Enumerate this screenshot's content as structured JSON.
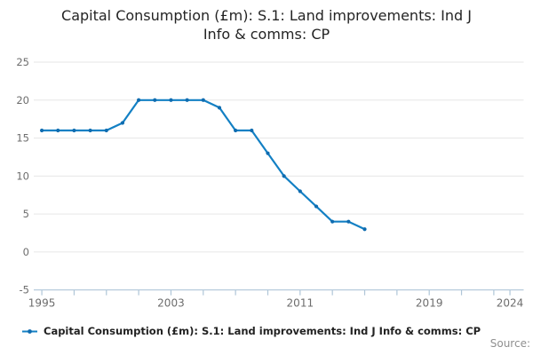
{
  "title": {
    "line1": "Capital Consumption (£m): S.1: Land improvements: Ind J",
    "line2": "Info & comms: CP"
  },
  "legend": {
    "label": "Capital Consumption (£m): S.1: Land improvements: Ind J Info & comms: CP"
  },
  "source": {
    "label": "Source:"
  },
  "colors": {
    "line": "#1380c4",
    "marker": "#0f6cb0",
    "grid": "#e6e6e6",
    "axis": "#afc6d8",
    "tick_label": "#6d6d6d",
    "title_text": "#242424",
    "legend_text": "#222222",
    "source_text": "#8f8f8f"
  },
  "chart_data": {
    "type": "line",
    "title": "Capital Consumption (£m): S.1: Land improvements: Ind J Info & comms: CP",
    "series_name": "Capital Consumption (£m): S.1: Land improvements: Ind J Info & comms: CP",
    "x": [
      1995,
      1996,
      1997,
      1998,
      1999,
      2000,
      2001,
      2002,
      2003,
      2004,
      2005,
      2006,
      2007,
      2008,
      2009,
      2010,
      2011,
      2012,
      2013,
      2014,
      2015
    ],
    "values": [
      16,
      16,
      16,
      16,
      16,
      17,
      20,
      20,
      20,
      20,
      20,
      19,
      16,
      16,
      13,
      10,
      8,
      6,
      4,
      4,
      3
    ],
    "xlabel": "",
    "ylabel": "",
    "ylim": [
      -5,
      25
    ],
    "yticks": [
      {
        "v": 25,
        "text": "25"
      },
      {
        "v": 20,
        "text": "20"
      },
      {
        "v": 15,
        "text": "15"
      },
      {
        "v": 10,
        "text": "10"
      },
      {
        "v": 5,
        "text": "5"
      },
      {
        "v": 0,
        "text": "0"
      },
      {
        "v": -5,
        "text": "-5"
      }
    ],
    "xticks": [
      1995,
      1997,
      1999,
      2001,
      2003,
      2005,
      2007,
      2009,
      2011,
      2013,
      2015,
      2017,
      2019,
      2021,
      2023,
      2024
    ],
    "xtick_labels": [
      {
        "x": 1995,
        "text": "1995"
      },
      {
        "x": 2003,
        "text": "2003"
      },
      {
        "x": 2011,
        "text": "2011"
      },
      {
        "x": 2019,
        "text": "2019"
      },
      {
        "x": 2024,
        "text": "2024"
      }
    ],
    "xlim": [
      1994.5,
      2024.85
    ],
    "grid": "horizontal",
    "legend_position": "bottom-left"
  }
}
